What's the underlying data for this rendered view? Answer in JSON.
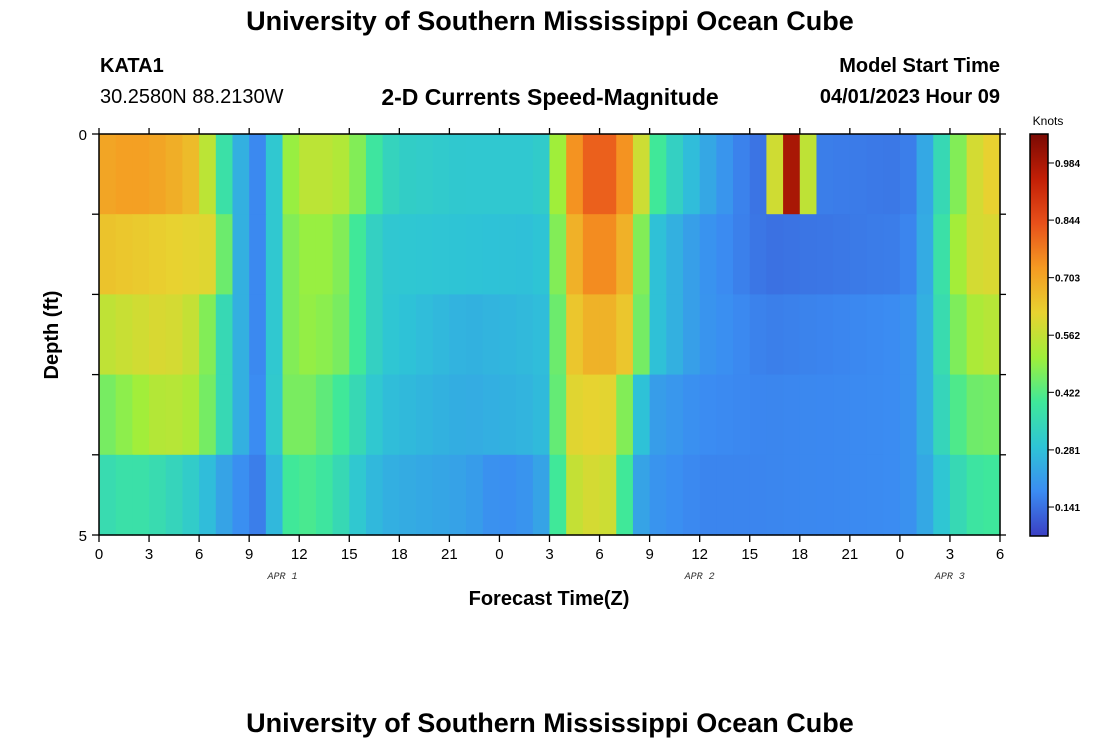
{
  "header": {
    "title": "University of Southern Mississippi Ocean Cube",
    "station_id": "KATA1",
    "station_location": "30.2580N  88.2130W",
    "subtitle": "2-D Currents Speed-Magnitude",
    "model_start_label": "Model Start Time",
    "model_start_value": "04/01/2023 Hour 09"
  },
  "footer": {
    "title": "University of Southern Mississippi Ocean Cube"
  },
  "colors": {
    "ramp": [
      "#3b3fc4",
      "#3b8cf2",
      "#2ec4d6",
      "#3fe89a",
      "#9fef3a",
      "#e8d230",
      "#f59a22",
      "#e8501a",
      "#c21f06",
      "#7a0a04"
    ]
  },
  "chart_data": {
    "type": "heatmap",
    "xlabel": "Forecast Time(Z)",
    "ylabel": "Depth (ft)",
    "y_ticks": [
      "0",
      "5"
    ],
    "y_range": [
      0,
      5
    ],
    "depth_bands": 5,
    "hours_per_column": 1,
    "total_hours": 54,
    "x_tick_labels": [
      "0",
      "3",
      "6",
      "9",
      "12",
      "15",
      "18",
      "21",
      "0",
      "3",
      "6",
      "9",
      "12",
      "15",
      "18",
      "21",
      "0",
      "3",
      "6"
    ],
    "date_labels": [
      {
        "label": "APR 1",
        "hour": 11
      },
      {
        "label": "APR 2",
        "hour": 36
      },
      {
        "label": "APR 3",
        "hour": 51
      }
    ],
    "colorbar": {
      "unit": "Knots",
      "min": 0.07,
      "max": 1.055,
      "ticks": [
        "0.984",
        "0.844",
        "0.703",
        "0.562",
        "0.422",
        "0.281",
        "0.141"
      ]
    },
    "band_depths_ft": [
      "0-1",
      "1-2",
      "2-3",
      "3-4",
      "4-5"
    ],
    "speed_anchors_knots": {
      "0-1": [
        [
          0,
          0.7
        ],
        [
          2,
          0.72
        ],
        [
          4,
          0.7
        ],
        [
          6,
          0.65
        ],
        [
          7,
          0.45
        ],
        [
          8,
          0.3
        ],
        [
          9,
          0.2
        ],
        [
          10,
          0.15
        ],
        [
          11,
          0.45
        ],
        [
          12,
          0.55
        ],
        [
          14,
          0.55
        ],
        [
          15,
          0.52
        ],
        [
          16,
          0.43
        ],
        [
          17,
          0.35
        ],
        [
          18,
          0.32
        ],
        [
          22,
          0.3
        ],
        [
          26,
          0.3
        ],
        [
          27,
          0.32
        ],
        [
          28,
          0.7
        ],
        [
          30,
          0.85
        ],
        [
          32,
          0.7
        ],
        [
          33,
          0.45
        ],
        [
          34,
          0.35
        ],
        [
          36,
          0.25
        ],
        [
          38,
          0.18
        ],
        [
          39,
          0.15
        ],
        [
          40,
          0.14
        ],
        [
          41,
          1.02
        ],
        [
          42,
          0.95
        ],
        [
          43,
          0.16
        ],
        [
          48,
          0.15
        ],
        [
          49,
          0.17
        ],
        [
          50,
          0.3
        ],
        [
          51,
          0.4
        ],
        [
          52,
          0.55
        ],
        [
          53,
          0.62
        ],
        [
          54,
          0.62
        ]
      ],
      "1-2": [
        [
          0,
          0.65
        ],
        [
          7,
          0.6
        ],
        [
          8,
          0.3
        ],
        [
          9,
          0.2
        ],
        [
          10,
          0.15
        ],
        [
          11,
          0.45
        ],
        [
          12,
          0.5
        ],
        [
          14,
          0.5
        ],
        [
          15,
          0.45
        ],
        [
          16,
          0.35
        ],
        [
          17,
          0.3
        ],
        [
          26,
          0.28
        ],
        [
          27,
          0.3
        ],
        [
          28,
          0.65
        ],
        [
          30,
          0.78
        ],
        [
          32,
          0.65
        ],
        [
          33,
          0.3
        ],
        [
          36,
          0.2
        ],
        [
          40,
          0.14
        ],
        [
          44,
          0.15
        ],
        [
          48,
          0.16
        ],
        [
          49,
          0.18
        ],
        [
          50,
          0.3
        ],
        [
          51,
          0.45
        ],
        [
          52,
          0.58
        ],
        [
          54,
          0.6
        ]
      ],
      "2-3": [
        [
          0,
          0.55
        ],
        [
          4,
          0.6
        ],
        [
          6,
          0.55
        ],
        [
          7,
          0.4
        ],
        [
          8,
          0.3
        ],
        [
          9,
          0.2
        ],
        [
          10,
          0.15
        ],
        [
          11,
          0.45
        ],
        [
          12,
          0.5
        ],
        [
          14,
          0.48
        ],
        [
          15,
          0.45
        ],
        [
          16,
          0.35
        ],
        [
          17,
          0.3
        ],
        [
          22,
          0.25
        ],
        [
          26,
          0.27
        ],
        [
          27,
          0.28
        ],
        [
          28,
          0.62
        ],
        [
          30,
          0.7
        ],
        [
          32,
          0.62
        ],
        [
          33,
          0.3
        ],
        [
          36,
          0.2
        ],
        [
          40,
          0.16
        ],
        [
          48,
          0.18
        ],
        [
          49,
          0.2
        ],
        [
          50,
          0.3
        ],
        [
          51,
          0.42
        ],
        [
          52,
          0.52
        ],
        [
          54,
          0.55
        ]
      ],
      "3-4": [
        [
          0,
          0.45
        ],
        [
          2,
          0.5
        ],
        [
          4,
          0.55
        ],
        [
          6,
          0.52
        ],
        [
          7,
          0.4
        ],
        [
          8,
          0.3
        ],
        [
          9,
          0.2
        ],
        [
          10,
          0.16
        ],
        [
          11,
          0.45
        ],
        [
          12,
          0.48
        ],
        [
          14,
          0.42
        ],
        [
          15,
          0.38
        ],
        [
          16,
          0.32
        ],
        [
          17,
          0.28
        ],
        [
          22,
          0.24
        ],
        [
          26,
          0.26
        ],
        [
          27,
          0.28
        ],
        [
          28,
          0.6
        ],
        [
          30,
          0.62
        ],
        [
          31,
          0.6
        ],
        [
          32,
          0.35
        ],
        [
          33,
          0.22
        ],
        [
          36,
          0.18
        ],
        [
          40,
          0.17
        ],
        [
          48,
          0.18
        ],
        [
          49,
          0.2
        ],
        [
          50,
          0.3
        ],
        [
          51,
          0.38
        ],
        [
          52,
          0.45
        ],
        [
          54,
          0.46
        ]
      ],
      "4-5": [
        [
          0,
          0.35
        ],
        [
          2,
          0.38
        ],
        [
          4,
          0.35
        ],
        [
          6,
          0.3
        ],
        [
          7,
          0.25
        ],
        [
          8,
          0.2
        ],
        [
          9,
          0.17
        ],
        [
          10,
          0.15
        ],
        [
          11,
          0.38
        ],
        [
          12,
          0.42
        ],
        [
          14,
          0.38
        ],
        [
          15,
          0.32
        ],
        [
          16,
          0.28
        ],
        [
          17,
          0.25
        ],
        [
          22,
          0.22
        ],
        [
          24,
          0.18
        ],
        [
          26,
          0.2
        ],
        [
          27,
          0.25
        ],
        [
          28,
          0.55
        ],
        [
          30,
          0.6
        ],
        [
          31,
          0.55
        ],
        [
          32,
          0.25
        ],
        [
          33,
          0.2
        ],
        [
          36,
          0.17
        ],
        [
          40,
          0.17
        ],
        [
          48,
          0.18
        ],
        [
          49,
          0.2
        ],
        [
          50,
          0.27
        ],
        [
          51,
          0.32
        ],
        [
          52,
          0.38
        ],
        [
          54,
          0.4
        ]
      ]
    }
  }
}
